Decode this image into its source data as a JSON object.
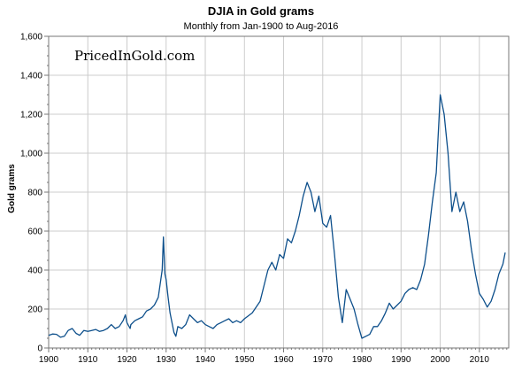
{
  "chart_data": {
    "type": "line",
    "title": "DJIA in Gold grams",
    "subtitle": "Monthly from Jan-1900 to Aug-2016",
    "watermark": "PricedInGold.com",
    "xlabel": "",
    "ylabel": "Gold grams",
    "xlim": [
      1900,
      2017.5
    ],
    "ylim": [
      0,
      1600
    ],
    "x_ticks": [
      1900,
      1910,
      1920,
      1930,
      1940,
      1950,
      1960,
      1970,
      1980,
      1990,
      2000,
      2010
    ],
    "y_ticks": [
      0,
      200,
      400,
      600,
      800,
      1000,
      1200,
      1400,
      1600
    ],
    "y_tick_labels": [
      "0",
      "200",
      "400",
      "600",
      "800",
      "1,000",
      "1,200",
      "1,400",
      "1,600"
    ],
    "grid": true,
    "series_color": "#0d4f8b",
    "series": [
      {
        "x": [
          1900,
          1901,
          1902,
          1903,
          1904,
          1905,
          1906,
          1907,
          1907.9,
          1909,
          1910,
          1911,
          1912,
          1913,
          1914,
          1915,
          1916,
          1917,
          1918,
          1919,
          1919.6,
          1920,
          1920.8,
          1921,
          1922,
          1923,
          1924,
          1925,
          1926,
          1927,
          1928,
          1929,
          1929.3,
          1929.7,
          1930,
          1930.5,
          1931,
          1932,
          1932.5,
          1933,
          1934,
          1935,
          1936,
          1937,
          1938,
          1939,
          1940,
          1941,
          1942,
          1943,
          1944,
          1945,
          1946,
          1947,
          1948,
          1949,
          1950,
          1952,
          1954,
          1955,
          1956,
          1957,
          1958,
          1959,
          1960,
          1961,
          1962,
          1963,
          1964,
          1965,
          1966,
          1967,
          1968,
          1969,
          1970,
          1971,
          1972,
          1973,
          1974,
          1975,
          1976,
          1977,
          1978,
          1979,
          1980,
          1981,
          1982,
          1983,
          1984,
          1985,
          1986,
          1987,
          1988,
          1989,
          1990,
          1991,
          1992,
          1993,
          1994,
          1995,
          1996,
          1997,
          1998,
          1999,
          2000,
          2001,
          2002,
          2003,
          2004,
          2005,
          2006,
          2007,
          2008,
          2009,
          2010,
          2011,
          2012,
          2013,
          2014,
          2015,
          2016,
          2016.6
        ],
        "values": [
          65,
          72,
          70,
          55,
          60,
          90,
          100,
          75,
          65,
          90,
          85,
          90,
          95,
          85,
          90,
          100,
          120,
          100,
          110,
          140,
          170,
          130,
          100,
          120,
          140,
          150,
          160,
          190,
          200,
          220,
          260,
          400,
          570,
          380,
          350,
          260,
          180,
          80,
          60,
          110,
          100,
          120,
          170,
          150,
          130,
          140,
          120,
          110,
          100,
          120,
          130,
          140,
          150,
          130,
          140,
          130,
          150,
          180,
          240,
          320,
          400,
          440,
          400,
          480,
          460,
          560,
          540,
          600,
          680,
          780,
          850,
          800,
          700,
          780,
          640,
          620,
          680,
          480,
          260,
          130,
          300,
          250,
          200,
          120,
          50,
          60,
          70,
          110,
          110,
          140,
          180,
          230,
          200,
          220,
          240,
          280,
          300,
          310,
          300,
          350,
          430,
          580,
          750,
          900,
          1300,
          1200,
          1000,
          700,
          800,
          700,
          750,
          650,
          500,
          380,
          280,
          250,
          210,
          240,
          300,
          380,
          430,
          490
        ]
      }
    ]
  }
}
